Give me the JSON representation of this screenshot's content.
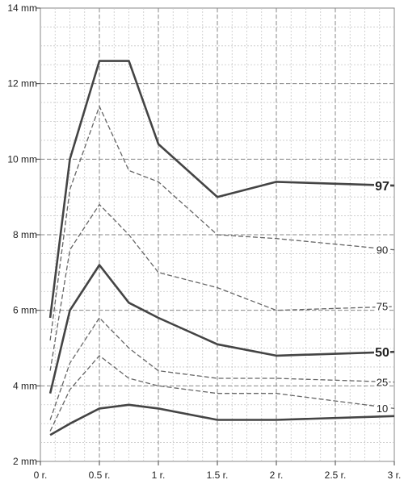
{
  "chart_data": {
    "type": "line",
    "title": "",
    "xlabel": "",
    "ylabel": "",
    "xlim": [
      0,
      3
    ],
    "ylim": [
      2,
      14
    ],
    "grid": true,
    "x_ticks": [
      {
        "value": 0,
        "label": "0 r."
      },
      {
        "value": 0.5,
        "label": "0.5 r."
      },
      {
        "value": 1,
        "label": "1 r."
      },
      {
        "value": 1.5,
        "label": "1.5 r."
      },
      {
        "value": 2,
        "label": "2 r."
      },
      {
        "value": 2.5,
        "label": "2.5 r."
      },
      {
        "value": 3,
        "label": "3 r."
      }
    ],
    "y_ticks": [
      {
        "value": 2,
        "label": "2 mm"
      },
      {
        "value": 4,
        "label": "4 mm"
      },
      {
        "value": 6,
        "label": "6 mm"
      },
      {
        "value": 8,
        "label": "8 mm"
      },
      {
        "value": 10,
        "label": "10 mm"
      },
      {
        "value": 12,
        "label": "12 mm"
      },
      {
        "value": 14,
        "label": "14 mm"
      }
    ],
    "x": [
      0.083,
      0.25,
      0.5,
      0.75,
      1,
      1.5,
      2,
      3
    ],
    "series": [
      {
        "name": "10",
        "label": "10",
        "style": "dashed",
        "color": "#666666",
        "values": [
          2.8,
          3.9,
          4.8,
          4.2,
          4.0,
          3.8,
          3.8,
          3.4
        ]
      },
      {
        "name": "25",
        "label": "25",
        "style": "dashed",
        "color": "#666666",
        "values": [
          3.1,
          4.6,
          5.8,
          5.0,
          4.4,
          4.2,
          4.2,
          4.1
        ]
      },
      {
        "name": "50",
        "label": "50",
        "style": "solid",
        "color": "#444444",
        "values": [
          3.8,
          6.0,
          7.2,
          6.2,
          5.8,
          5.1,
          4.8,
          4.9
        ]
      },
      {
        "name": "75",
        "label": "75",
        "style": "dashed",
        "color": "#666666",
        "values": [
          4.4,
          7.6,
          8.8,
          8.0,
          7.0,
          6.6,
          6.0,
          6.1
        ]
      },
      {
        "name": "90",
        "label": "90",
        "style": "dashed",
        "color": "#666666",
        "values": [
          5.2,
          9.2,
          11.4,
          9.7,
          9.4,
          8.0,
          7.9,
          7.6
        ]
      },
      {
        "name": "97",
        "label": "97",
        "style": "solid",
        "color": "#444444",
        "values": [
          5.8,
          10.0,
          12.6,
          12.6,
          10.4,
          9.0,
          9.4,
          9.3
        ]
      },
      {
        "name": "",
        "label": "",
        "style": "solid",
        "color": "#444444",
        "values": [
          2.7,
          3.0,
          3.4,
          3.5,
          3.4,
          3.1,
          3.1,
          3.2
        ]
      }
    ]
  }
}
